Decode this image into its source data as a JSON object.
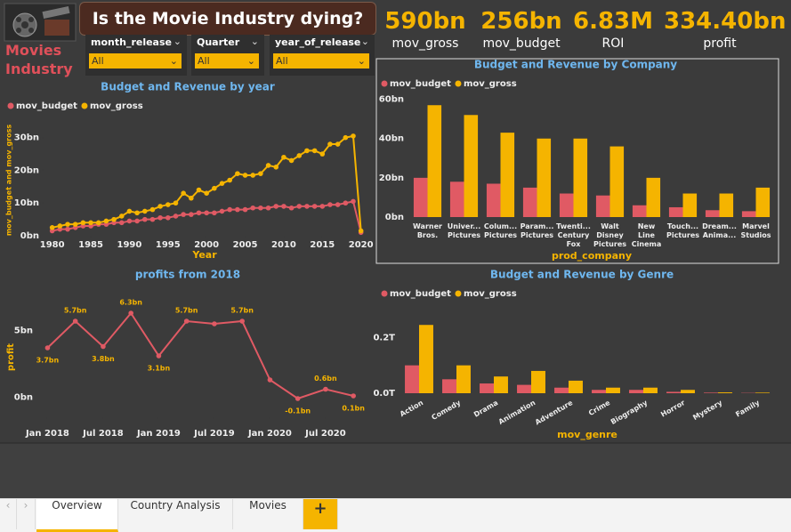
{
  "header": {
    "logo_text": "Movies Industry",
    "title": "Is the Movie Industry dying?"
  },
  "slicers": [
    {
      "label": "month_release",
      "value": "All"
    },
    {
      "label": "Quarter",
      "value": "All"
    },
    {
      "label": "year_of_release",
      "value": "All"
    }
  ],
  "kpis": [
    {
      "value": "590bn",
      "label": "mov_gross"
    },
    {
      "value": "256bn",
      "label": "mov_budget"
    },
    {
      "value": "6.83M",
      "label": "ROI"
    },
    {
      "value": "334.40bn",
      "label": "profit"
    }
  ],
  "tabs": [
    "Overview",
    "Country Analysis",
    "Movies"
  ],
  "chart_data": [
    {
      "type": "line",
      "title": "Budget and Revenue by year",
      "xlabel": "Year",
      "ylabel": "mov_budget and mov_gross",
      "x": [
        1980,
        1981,
        1982,
        1983,
        1984,
        1985,
        1986,
        1987,
        1988,
        1989,
        1990,
        1991,
        1992,
        1993,
        1994,
        1995,
        1996,
        1997,
        1998,
        1999,
        2000,
        2001,
        2002,
        2003,
        2004,
        2005,
        2006,
        2007,
        2008,
        2009,
        2010,
        2011,
        2012,
        2013,
        2014,
        2015,
        2016,
        2017,
        2018,
        2019,
        2020
      ],
      "xlim": [
        1979,
        2020.5
      ],
      "xticks": [
        1980,
        1985,
        1990,
        1995,
        2000,
        2005,
        2010,
        2015,
        2020
      ],
      "ylim": [
        0,
        34
      ],
      "yticks": [
        {
          "value": 0,
          "label": "0bn"
        },
        {
          "value": 10,
          "label": "10bn"
        },
        {
          "value": 20,
          "label": "20bn"
        },
        {
          "value": 30,
          "label": "30bn"
        }
      ],
      "legend": "top-left",
      "grid": false,
      "series": [
        {
          "name": "mov_budget",
          "color": "#e05a64",
          "values": [
            1.5,
            2,
            2,
            2.5,
            3,
            3,
            3.5,
            3.5,
            4,
            4,
            4.5,
            4.5,
            5,
            5,
            5.5,
            5.5,
            6,
            6.5,
            6.5,
            7,
            7,
            7,
            7.5,
            8,
            8,
            8,
            8.5,
            8.5,
            8.5,
            9,
            9,
            8.5,
            9,
            9,
            9,
            9,
            9.5,
            9.5,
            10,
            10.5,
            1
          ]
        },
        {
          "name": "mov_gross",
          "color": "#f5b400",
          "values": [
            2.5,
            3,
            3.5,
            3.5,
            4,
            4,
            4,
            4.5,
            5,
            6,
            7.5,
            7,
            7.5,
            8,
            9,
            9.5,
            10,
            13,
            11.5,
            14,
            13,
            14.5,
            16,
            17,
            19,
            18.5,
            18.5,
            19,
            21.5,
            21,
            24,
            23,
            24.5,
            26,
            26,
            25,
            28,
            28,
            30,
            30.5,
            1.5
          ]
        }
      ]
    },
    {
      "type": "line",
      "title": "profits from 2018",
      "ylabel": "profit",
      "x": [
        "2018-01",
        "2018-04",
        "2018-07",
        "2018-10",
        "2019-01",
        "2019-04",
        "2019-07",
        "2019-10",
        "2020-01",
        "2020-04",
        "2020-07",
        "2020-10"
      ],
      "xlim": [
        "2017-12",
        "2020-12"
      ],
      "xticks": [
        {
          "value": "2018-01",
          "label": "Jan 2018"
        },
        {
          "value": "2018-07",
          "label": "Jul 2018"
        },
        {
          "value": "2019-01",
          "label": "Jan 2019"
        },
        {
          "value": "2019-07",
          "label": "Jul 2019"
        },
        {
          "value": "2020-01",
          "label": "Jan 2020"
        },
        {
          "value": "2020-07",
          "label": "Jul 2020"
        }
      ],
      "ylim": [
        -1.5,
        7.5
      ],
      "yticks": [
        {
          "value": 0,
          "label": "0bn"
        },
        {
          "value": 5,
          "label": "5bn"
        }
      ],
      "grid": false,
      "series": [
        {
          "color": "#e05a64",
          "label_color": "#f5b400",
          "values": [
            3.7,
            5.7,
            3.8,
            6.3,
            3.1,
            5.7,
            5.5,
            5.7,
            1.3,
            -0.1,
            0.6,
            0.1
          ],
          "value_labels": [
            "3.7bn",
            "5.7bn",
            "3.8bn",
            "6.3bn",
            "3.1bn",
            "5.7bn",
            null,
            "5.7bn",
            null,
            "-0.1bn",
            "0.6bn",
            "0.1bn"
          ]
        }
      ]
    },
    {
      "type": "bar",
      "title": "Budget and Revenue by Company",
      "xlabel": "prod_company",
      "categories": [
        "Warner Bros.",
        "Univer... Pictures",
        "Colum... Pictures",
        "Param... Pictures",
        "Twenti... Century Fox",
        "Walt Disney Pictures",
        "New Line Cinema",
        "Touch... Pictures",
        "Dream... Anima...",
        "Marvel Studios"
      ],
      "ylim": [
        0,
        63
      ],
      "yticks": [
        {
          "value": 0,
          "label": "0bn"
        },
        {
          "value": 20,
          "label": "20bn"
        },
        {
          "value": 40,
          "label": "40bn"
        },
        {
          "value": 60,
          "label": "60bn"
        }
      ],
      "legend": "top-left",
      "grid": false,
      "label_style": "wrap",
      "series": [
        {
          "name": "mov_budget",
          "color": "#e05a64",
          "values": [
            20,
            18,
            17,
            15,
            12,
            11,
            6,
            5,
            3.5,
            3
          ]
        },
        {
          "name": "mov_gross",
          "color": "#f5b400",
          "values": [
            57,
            52,
            43,
            40,
            40,
            36,
            20,
            12,
            12,
            15
          ]
        }
      ]
    },
    {
      "type": "bar",
      "title": "Budget and Revenue by Genre",
      "xlabel": "mov_genre",
      "categories": [
        "Action",
        "Comedy",
        "Drama",
        "Animation",
        "Adventure",
        "Crime",
        "Biography",
        "Horror",
        "Mystery",
        "Family"
      ],
      "ylim": [
        0,
        0.3
      ],
      "yticks": [
        {
          "value": 0,
          "label": "0.0T"
        },
        {
          "value": 0.2,
          "label": "0.2T"
        }
      ],
      "legend": "top-left",
      "grid": false,
      "label_style": "rotate",
      "series": [
        {
          "name": "mov_budget",
          "color": "#e05a64",
          "values": [
            0.1,
            0.05,
            0.035,
            0.03,
            0.02,
            0.012,
            0.012,
            0.005,
            0.002,
            0.001
          ]
        },
        {
          "name": "mov_gross",
          "color": "#f5b400",
          "values": [
            0.245,
            0.1,
            0.06,
            0.08,
            0.045,
            0.02,
            0.02,
            0.012,
            0.003,
            0.002
          ]
        }
      ]
    }
  ]
}
